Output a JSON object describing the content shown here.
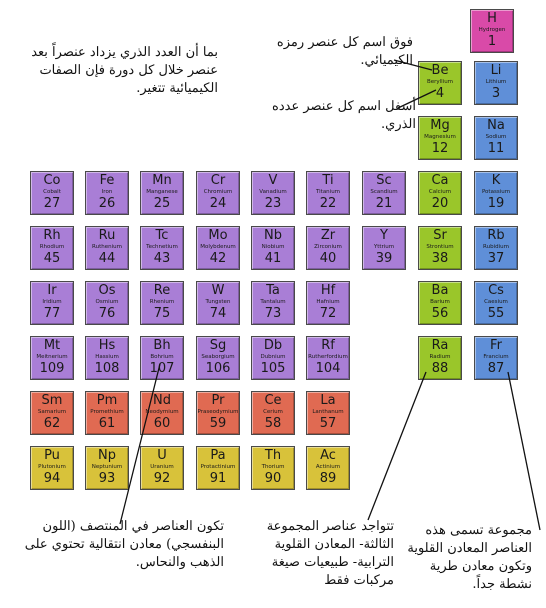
{
  "colors": {
    "hydrogen": "#d94aa8",
    "alkali": "#5f8fd8",
    "alkaline_earth": "#9ac62a",
    "transition": "#a97ed6",
    "lanthanide": "#e06a52",
    "actinide": "#d8c23a"
  },
  "elements": [
    {
      "symbol": "H",
      "name": "Hydrogen",
      "number": "1",
      "category": "hydrogen"
    },
    {
      "symbol": "Be",
      "name": "Beryllium",
      "number": "4",
      "category": "alkaline_earth"
    },
    {
      "symbol": "Li",
      "name": "Lithium",
      "number": "3",
      "category": "alkali"
    },
    {
      "symbol": "Mg",
      "name": "Magnesium",
      "number": "12",
      "category": "alkaline_earth"
    },
    {
      "symbol": "Na",
      "name": "Sodium",
      "number": "11",
      "category": "alkali"
    },
    {
      "symbol": "Co",
      "name": "Cobalt",
      "number": "27",
      "category": "transition"
    },
    {
      "symbol": "Fe",
      "name": "Iron",
      "number": "26",
      "category": "transition"
    },
    {
      "symbol": "Mn",
      "name": "Manganese",
      "number": "25",
      "category": "transition"
    },
    {
      "symbol": "Cr",
      "name": "Chromium",
      "number": "24",
      "category": "transition"
    },
    {
      "symbol": "V",
      "name": "Vanadium",
      "number": "23",
      "category": "transition"
    },
    {
      "symbol": "Ti",
      "name": "Titanium",
      "number": "22",
      "category": "transition"
    },
    {
      "symbol": "Sc",
      "name": "Scandium",
      "number": "21",
      "category": "transition"
    },
    {
      "symbol": "Ca",
      "name": "Calcium",
      "number": "20",
      "category": "alkaline_earth"
    },
    {
      "symbol": "K",
      "name": "Potassium",
      "number": "19",
      "category": "alkali"
    },
    {
      "symbol": "Rh",
      "name": "Rhodium",
      "number": "45",
      "category": "transition"
    },
    {
      "symbol": "Ru",
      "name": "Ruthenium",
      "number": "44",
      "category": "transition"
    },
    {
      "symbol": "Tc",
      "name": "Technetium",
      "number": "43",
      "category": "transition"
    },
    {
      "symbol": "Mo",
      "name": "Molybdenum",
      "number": "42",
      "category": "transition"
    },
    {
      "symbol": "Nb",
      "name": "Niobium",
      "number": "41",
      "category": "transition"
    },
    {
      "symbol": "Zr",
      "name": "Zirconium",
      "number": "40",
      "category": "transition"
    },
    {
      "symbol": "Y",
      "name": "Yttrium",
      "number": "39",
      "category": "transition"
    },
    {
      "symbol": "Sr",
      "name": "Strontium",
      "number": "38",
      "category": "alkaline_earth"
    },
    {
      "symbol": "Rb",
      "name": "Rubidium",
      "number": "37",
      "category": "alkali"
    },
    {
      "symbol": "Ir",
      "name": "Iridium",
      "number": "77",
      "category": "transition"
    },
    {
      "symbol": "Os",
      "name": "Osmium",
      "number": "76",
      "category": "transition"
    },
    {
      "symbol": "Re",
      "name": "Rhenium",
      "number": "75",
      "category": "transition"
    },
    {
      "symbol": "W",
      "name": "Tungsten",
      "number": "74",
      "category": "transition"
    },
    {
      "symbol": "Ta",
      "name": "Tantalum",
      "number": "73",
      "category": "transition"
    },
    {
      "symbol": "Hf",
      "name": "Hafnium",
      "number": "72",
      "category": "transition"
    },
    {
      "symbol": "Ba",
      "name": "Barium",
      "number": "56",
      "category": "alkaline_earth"
    },
    {
      "symbol": "Cs",
      "name": "Caesium",
      "number": "55",
      "category": "alkali"
    },
    {
      "symbol": "Mt",
      "name": "Meitnerium",
      "number": "109",
      "category": "transition"
    },
    {
      "symbol": "Hs",
      "name": "Hassium",
      "number": "108",
      "category": "transition"
    },
    {
      "symbol": "Bh",
      "name": "Bohrium",
      "number": "107",
      "category": "transition"
    },
    {
      "symbol": "Sg",
      "name": "Seaborgium",
      "number": "106",
      "category": "transition"
    },
    {
      "symbol": "Db",
      "name": "Dubnium",
      "number": "105",
      "category": "transition"
    },
    {
      "symbol": "Rf",
      "name": "Rutherfordium",
      "number": "104",
      "category": "transition"
    },
    {
      "symbol": "Ra",
      "name": "Radium",
      "number": "88",
      "category": "alkaline_earth"
    },
    {
      "symbol": "Fr",
      "name": "Francium",
      "number": "87",
      "category": "alkali"
    },
    {
      "symbol": "Sm",
      "name": "Samarium",
      "number": "62",
      "category": "lanthanide"
    },
    {
      "symbol": "Pm",
      "name": "Promethium",
      "number": "61",
      "category": "lanthanide"
    },
    {
      "symbol": "Nd",
      "name": "Neodymium",
      "number": "60",
      "category": "lanthanide"
    },
    {
      "symbol": "Pr",
      "name": "Praseodymium",
      "number": "59",
      "category": "lanthanide"
    },
    {
      "symbol": "Ce",
      "name": "Cerium",
      "number": "58",
      "category": "lanthanide"
    },
    {
      "symbol": "La",
      "name": "Lanthanum",
      "number": "57",
      "category": "lanthanide"
    },
    {
      "symbol": "Pu",
      "name": "Plutonium",
      "number": "94",
      "category": "actinide"
    },
    {
      "symbol": "Np",
      "name": "Neptunium",
      "number": "93",
      "category": "actinide"
    },
    {
      "symbol": "U",
      "name": "Uranium",
      "number": "92",
      "category": "actinide"
    },
    {
      "symbol": "Pa",
      "name": "Protactinium",
      "number": "91",
      "category": "actinide"
    },
    {
      "symbol": "Th",
      "name": "Thorium",
      "number": "90",
      "category": "actinide"
    },
    {
      "symbol": "Ac",
      "name": "Actinium",
      "number": "89",
      "category": "actinide"
    }
  ],
  "notes": {
    "atomic_number_trend": "بما أن العدد الذري يزداد عنصراً بعد عنصر خلال كل دورة فإن الصفات الكيميائية تتغير.",
    "symbol_label": "فوق اسم كل عنصر رمزه الكيميائي.",
    "number_label": "أسفل اسم كل عنصر عدده الذري.",
    "transition_metals": "تكون العناصر في المنتصف (اللون البنفسجي) معادن انتقالية تحتوي على الذهب والنحاس.",
    "alkaline_earth": "تتواجد عناصر المجموعة الثالثة- المعادن القلوية الترابية- طبيعيات صيغة مركبات فقط",
    "alkali": "مجموعة تسمى هذه العناصر المعادن القلوية وتكون معادن طرية نشطة جداً."
  }
}
